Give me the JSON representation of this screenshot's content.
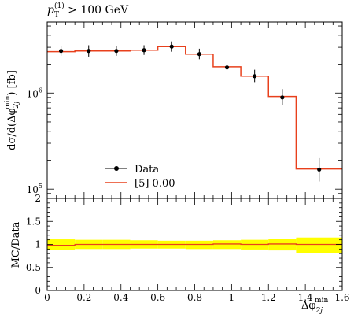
{
  "chart_data": {
    "type": "line",
    "title": "p_T^(1) > 100 GeV",
    "title_parts": {
      "p": "p",
      "sub": "T",
      "sup": "(1)",
      "rest": " > 100 GeV"
    },
    "ylabel": "dσ/d(Δφ2j min) [fb]",
    "ylabel_parts": {
      "main": "dσ/d(Δφ",
      "sub": "2j",
      "sup": "min",
      "end": ") [fb]"
    },
    "xlabel_parts": {
      "main": "Δφ",
      "sub": "2j",
      "sup": "min"
    },
    "ratio_ylabel": "MC/Data",
    "x_range": [
      0,
      1.6
    ],
    "y_range_log": [
      80000,
      5500000
    ],
    "y_scale": "log",
    "ratio_range": [
      0,
      2
    ],
    "legend_position": "bottom-left",
    "x_tick_labels": [
      "0",
      "0.2",
      "0.4",
      "0.6",
      "0.8",
      "1",
      "1.2",
      "1.4",
      "1.6"
    ],
    "x_tick_values": [
      0,
      0.2,
      0.4,
      0.6,
      0.8,
      1.0,
      1.2,
      1.4,
      1.6
    ],
    "y_tick_labels": [
      {
        "value": 1000000,
        "base": "10",
        "exp": "6"
      },
      {
        "value": 100000,
        "base": "10",
        "exp": "5"
      }
    ],
    "ratio_tick_labels": [
      "0",
      "0.5",
      "1",
      "1.5",
      "2"
    ],
    "ratio_tick_values": [
      0,
      0.5,
      1,
      1.5,
      2
    ],
    "bins": [
      0,
      0.15,
      0.3,
      0.45,
      0.6,
      0.75,
      0.9,
      1.05,
      1.2,
      1.35,
      1.6
    ],
    "series": [
      {
        "name": "Data",
        "kind": "points",
        "color": "#000000",
        "x": [
          0.075,
          0.225,
          0.375,
          0.525,
          0.675,
          0.825,
          0.975,
          1.125,
          1.275,
          1.475
        ],
        "y": [
          2750000,
          2750000,
          2750000,
          2800000,
          3050000,
          2550000,
          1850000,
          1500000,
          900000,
          160000
        ],
        "err_up": [
          350000,
          400000,
          350000,
          350000,
          400000,
          350000,
          300000,
          250000,
          200000,
          50000
        ],
        "err_down": [
          300000,
          350000,
          300000,
          300000,
          350000,
          300000,
          250000,
          200000,
          150000,
          40000
        ]
      },
      {
        "name": "[5] 0.00",
        "kind": "histogram",
        "color": "#e8401c",
        "values": [
          2700000,
          2750000,
          2750000,
          2800000,
          3050000,
          2550000,
          1880000,
          1500000,
          920000,
          162000
        ]
      }
    ],
    "ratio_band": {
      "color": "#ffff00",
      "bins": [
        0,
        0.15,
        0.3,
        0.45,
        0.6,
        0.75,
        0.9,
        1.05,
        1.2,
        1.35,
        1.6
      ],
      "low": [
        0.88,
        0.9,
        0.9,
        0.91,
        0.91,
        0.9,
        0.9,
        0.89,
        0.87,
        0.81
      ],
      "high": [
        1.11,
        1.1,
        1.1,
        1.09,
        1.08,
        1.08,
        1.09,
        1.1,
        1.12,
        1.15
      ]
    },
    "ratio_line": {
      "color": "#e8401c",
      "values": [
        0.98,
        1.0,
        1.0,
        1.0,
        1.0,
        1.0,
        1.01,
        1.0,
        1.01,
        1.0
      ]
    }
  }
}
